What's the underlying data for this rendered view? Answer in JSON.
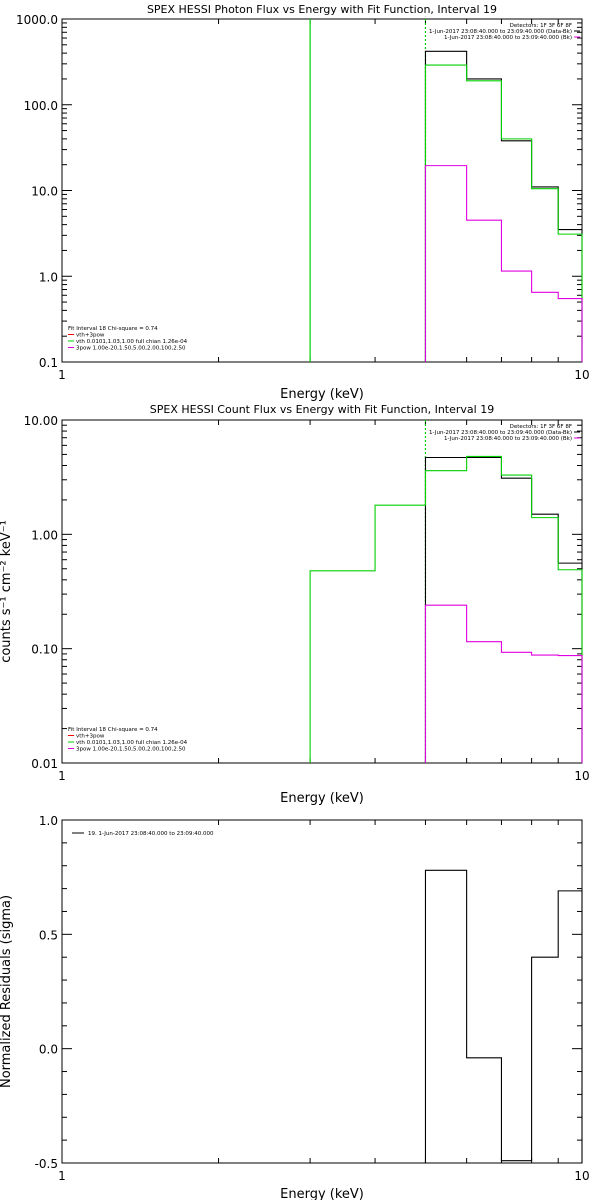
{
  "colors": {
    "black": "#000000",
    "green": "#00d000",
    "magenta": "#e000e0",
    "red": "#ff0000"
  },
  "chart_data": [
    {
      "type": "line",
      "title": "SPEX HESSI Photon Flux vs Energy with Fit Function, Interval 19",
      "xlabel": "Energy (keV)",
      "ylabel": "",
      "xscale": "log",
      "yscale": "log",
      "xlim": [
        1,
        10
      ],
      "ylim": [
        0.1,
        1000
      ],
      "xtick_labels": [
        "1",
        "10"
      ],
      "ytick_labels": [
        "0.1",
        "1.0",
        "10.0",
        "100.0",
        "1000.0"
      ],
      "ytick_values": [
        0.1,
        1,
        10,
        100,
        1000
      ],
      "header": [
        "Detectors: 1F 3F 6F 8F",
        "1-Jun-2017 23:08:40.000 to 23:09:40.000 (Data-Bk)",
        "1-Jun-2017 23:08:40.000 to 23:09:40.000 (Bk)"
      ],
      "legend": [
        "Fit Interval 18   Chi-square = 0.74",
        "vth+3pow",
        "vth 0.0101,1.03,1.00  full chian 1.26e-04",
        "3pow 1.00e-20,1.50,5.00,2.00,100,2.50"
      ],
      "vlines": [
        {
          "x": 3.0,
          "color": "#00d000",
          "style": "solid"
        },
        {
          "x": 5.0,
          "color": "#00d000",
          "style": "dotted"
        }
      ],
      "series": [
        {
          "color": "#000000",
          "edges": [
            5,
            6,
            7,
            8,
            9,
            10
          ],
          "values": [
            420,
            200,
            38,
            11,
            3.5
          ]
        },
        {
          "color": "#00d000",
          "edges": [
            5,
            6,
            7,
            8,
            9,
            10
          ],
          "values": [
            290,
            190,
            40,
            10.5,
            3.1
          ]
        },
        {
          "color": "#e000e0",
          "edges": [
            5,
            6,
            7,
            8,
            9,
            10
          ],
          "values": [
            19.5,
            4.5,
            1.15,
            0.65,
            0.55
          ]
        }
      ]
    },
    {
      "type": "line",
      "title": "SPEX HESSI Count Flux vs Energy with Fit Function, Interval 19",
      "xlabel": "Energy (keV)",
      "ylabel": "counts s⁻¹ cm⁻² keV⁻¹",
      "xscale": "log",
      "yscale": "log",
      "xlim": [
        1,
        10
      ],
      "ylim": [
        0.01,
        10
      ],
      "xtick_labels": [
        "1",
        "10"
      ],
      "ytick_labels": [
        "0.01",
        "0.10",
        "1.00",
        "10.00"
      ],
      "ytick_values": [
        0.01,
        0.1,
        1,
        10
      ],
      "header": [
        "Detectors: 1F 3F 6F 8F",
        "1-Jun-2017 23:08:40.000 to 23:09:40.000 (Data-Bk)",
        "1-Jun-2017 23:08:40.000 to 23:09:40.000 (Bk)"
      ],
      "legend": [
        "Fit Interval 18   Chi-square = 0.74",
        "vth+3pow",
        "vth 0.0101,1.03,1.00  full chian 1.26e-04",
        "3pow 1.00e-20,1.50,5.00,2.00,100,2.50"
      ],
      "vlines": [
        {
          "x": 5.0,
          "color": "#00d000",
          "style": "dotted"
        }
      ],
      "series": [
        {
          "color": "#000000",
          "edges": [
            5,
            6,
            7,
            8,
            9,
            10
          ],
          "values": [
            4.7,
            4.7,
            3.1,
            1.5,
            0.56
          ]
        },
        {
          "color": "#00d000",
          "edges": [
            3,
            4,
            5,
            6,
            7,
            8,
            9,
            10
          ],
          "values": [
            0.48,
            1.8,
            3.6,
            4.8,
            3.3,
            1.4,
            0.49
          ]
        },
        {
          "color": "#e000e0",
          "edges": [
            5,
            6,
            7,
            8,
            9,
            10
          ],
          "values": [
            0.24,
            0.115,
            0.093,
            0.088,
            0.087
          ]
        }
      ]
    },
    {
      "type": "line",
      "title": "",
      "xlabel": "Energy (keV)",
      "ylabel": "Normalized Residuals (sigma)",
      "xscale": "log",
      "yscale": "linear",
      "xlim": [
        1,
        10
      ],
      "ylim": [
        -0.5,
        1.0
      ],
      "xtick_labels": [
        "1",
        "10"
      ],
      "ytick_labels": [
        "-0.5",
        "0.0",
        "0.5",
        "1.0"
      ],
      "ytick_values": [
        -0.5,
        0,
        0.5,
        1.0
      ],
      "header": [],
      "legend": [
        "19.  1-Jun-2017 23:08:40.000 to 23:09:40.000"
      ],
      "vlines": [],
      "series": [
        {
          "color": "#000000",
          "edges": [
            5,
            6,
            7,
            8,
            9,
            10
          ],
          "values": [
            0.78,
            -0.04,
            -0.49,
            0.4,
            0.69
          ]
        }
      ]
    }
  ]
}
